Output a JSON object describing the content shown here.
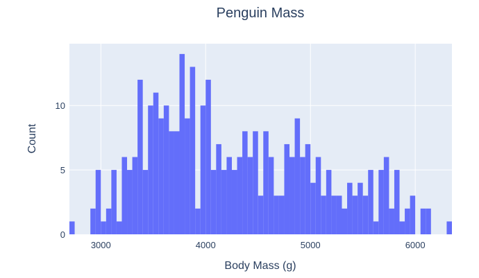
{
  "chart_data": {
    "type": "bar",
    "title": "Penguin Mass",
    "xlabel": "Body Mass (g)",
    "ylabel": "Count",
    "xlim": [
      2700,
      6350
    ],
    "ylim": [
      0,
      14.8
    ],
    "xticks": [
      3000,
      4000,
      5000,
      6000
    ],
    "yticks": [
      0,
      5,
      10
    ],
    "bin_start": 2700,
    "bin_width": 50,
    "values": [
      1,
      0,
      0,
      0,
      2,
      5,
      1,
      2,
      5,
      1,
      6,
      5,
      6,
      12,
      5,
      10,
      11,
      9,
      10,
      8,
      8,
      14,
      9,
      13,
      2,
      10,
      12,
      5,
      7,
      5,
      6,
      5,
      6,
      8,
      6,
      8,
      3,
      8,
      6,
      3,
      3,
      7,
      6,
      9,
      6,
      7,
      4,
      6,
      3,
      5,
      3,
      3,
      2,
      4,
      3,
      4,
      3,
      5,
      1,
      5,
      6,
      2,
      5,
      1,
      2,
      3,
      0,
      2,
      2,
      0,
      0,
      0,
      1
    ],
    "grid": true,
    "colors": {
      "bar": "#636efa",
      "plot_bg": "#e5ecf6",
      "text": "#2a3f5f",
      "grid": "#ffffff"
    }
  }
}
